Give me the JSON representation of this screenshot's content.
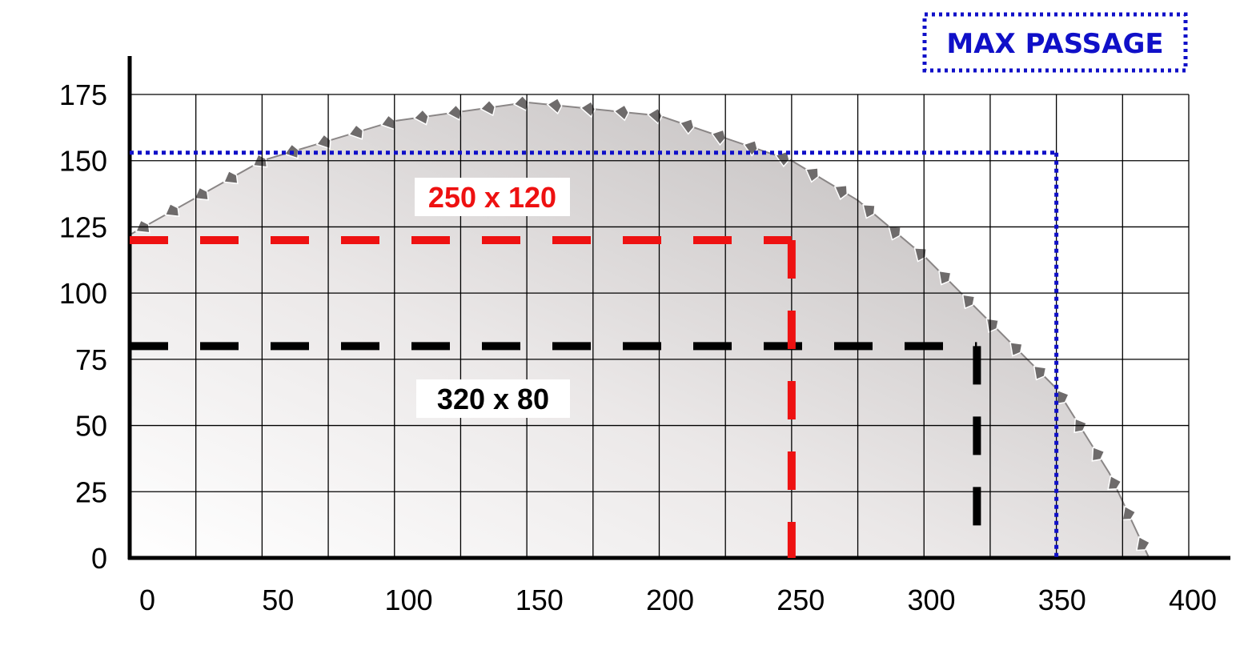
{
  "chart_data": {
    "type": "area",
    "title": "",
    "xlabel": "",
    "ylabel": "",
    "xlim": [
      0,
      400
    ],
    "ylim": [
      0,
      175
    ],
    "x_ticks": [
      0,
      50,
      100,
      150,
      200,
      250,
      300,
      350,
      400
    ],
    "y_ticks": [
      0,
      25,
      50,
      75,
      100,
      125,
      150,
      175
    ],
    "x_tick_labels": [
      "0",
      "50",
      "100",
      "150",
      "200",
      "250",
      "300",
      "350",
      "400"
    ],
    "y_tick_labels": [
      "0",
      "25",
      "50",
      "75",
      "100",
      "125",
      "150",
      "175"
    ],
    "grid": true,
    "grid_step": {
      "x": 25,
      "y": 25
    },
    "blade_profile": {
      "name": "",
      "x": [
        0,
        50,
        100,
        150,
        200,
        250,
        275,
        300,
        325,
        350,
        370,
        385
      ],
      "y": [
        122,
        150,
        165,
        172,
        167,
        150,
        135,
        114,
        89,
        64,
        32,
        0
      ]
    },
    "passages": [
      {
        "label": "250 x 120",
        "width": 250,
        "height": 120,
        "color": "#ee1111",
        "style": "dashed"
      },
      {
        "label": "320 x 80",
        "width": 320,
        "height": 80,
        "color": "#000000",
        "style": "dashed"
      }
    ],
    "max_passage": {
      "label": "MAX PASSAGE",
      "width": 350,
      "height": 153,
      "color": "#1010c8",
      "style": "dotted"
    }
  }
}
